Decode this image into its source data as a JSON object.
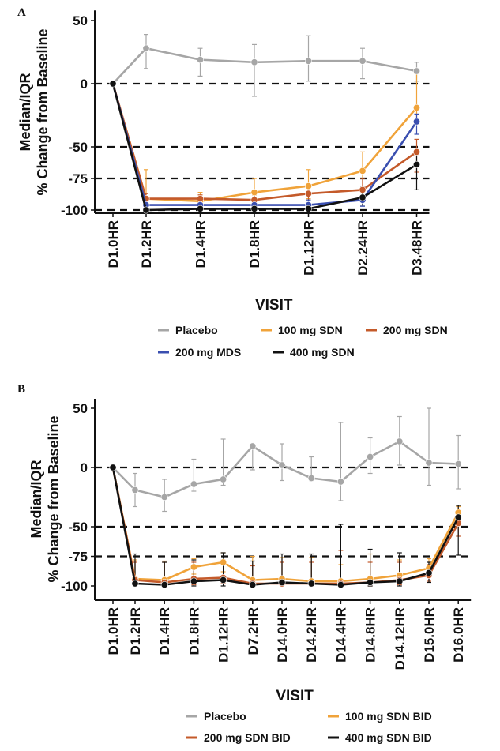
{
  "chart_data": [
    {
      "panel_label": "A",
      "type": "line",
      "ylabel_line1": "Median/IQR",
      "ylabel_line2": "% Change from Baseline",
      "xlabel": "VISIT",
      "ylim": [
        -105,
        58
      ],
      "y_ticks": [
        50,
        0,
        -50,
        -75,
        -100
      ],
      "ref_lines": [
        0,
        -50,
        -75,
        -100
      ],
      "categories": [
        "D1.0HR",
        "D1.2HR",
        "D1.4HR",
        "D1.8HR",
        "D1.12HR",
        "D2.24HR",
        "D3.48HR"
      ],
      "legend_position": "bottom",
      "series": [
        {
          "name": "Placebo",
          "color": "#a6a6a6",
          "values": [
            0,
            28,
            19,
            17,
            18,
            18,
            10
          ],
          "err_low": [
            0,
            12,
            6,
            -10,
            2,
            4,
            2
          ],
          "err_high": [
            0,
            39,
            28,
            31,
            38,
            28,
            17
          ]
        },
        {
          "name": "100 mg SDN",
          "color": "#f0a33a",
          "values": [
            0,
            -91,
            -93,
            -86,
            -81,
            -69,
            -19
          ],
          "err_low": [
            0,
            -99,
            -97,
            -93,
            -91,
            -89,
            -32
          ],
          "err_high": [
            0,
            -68,
            -86,
            -75,
            -68,
            -54,
            8
          ]
        },
        {
          "name": "200 mg SDN",
          "color": "#c45a2a",
          "values": [
            0,
            -91,
            -91,
            -92,
            -87,
            -84,
            -54
          ],
          "err_low": [
            0,
            -97,
            -96,
            -97,
            -95,
            -93,
            -70
          ],
          "err_high": [
            0,
            -87,
            -88,
            -88,
            -80,
            -75,
            -44
          ]
        },
        {
          "name": "200 mg MDS",
          "color": "#3a4fb0",
          "values": [
            0,
            -96,
            -96,
            -96,
            -96,
            -92,
            -30
          ],
          "err_low": [
            0,
            -99,
            -99,
            -99,
            -99,
            -97,
            -40
          ],
          "err_high": [
            0,
            -92,
            -92,
            -92,
            -92,
            -86,
            -24
          ]
        },
        {
          "name": "400 mg SDN",
          "color": "#111111",
          "values": [
            0,
            -100,
            -99,
            -99,
            -99,
            -90,
            -64
          ],
          "err_low": [
            0,
            -100,
            -100,
            -100,
            -100,
            -96,
            -84
          ],
          "err_high": [
            0,
            -98,
            -98,
            -98,
            -98,
            -82,
            -56
          ]
        }
      ]
    },
    {
      "panel_label": "B",
      "type": "line",
      "ylabel_line1": "Median/IQR",
      "ylabel_line2": "% Change from Baseline",
      "xlabel": "VISIT",
      "ylim": [
        -105,
        58
      ],
      "y_ticks": [
        50,
        0,
        -50,
        -75,
        -100
      ],
      "ref_lines": [
        0,
        -50,
        -75
      ],
      "categories": [
        "D1.0HR",
        "D1.2HR",
        "D1.4HR",
        "D1.8HR",
        "D1.12HR",
        "D7.2HR",
        "D14.0HR",
        "D14.2HR",
        "D14.4HR",
        "D14.8HR",
        "D14.12HR",
        "D15.0HR",
        "D16.0HR"
      ],
      "legend_position": "bottom",
      "series": [
        {
          "name": "Placebo",
          "color": "#a6a6a6",
          "values": [
            0,
            -19,
            -25,
            -14,
            -10,
            18,
            2,
            -9,
            -12,
            9,
            22,
            4,
            3
          ],
          "err_low": [
            0,
            -33,
            -37,
            -20,
            -15,
            -2,
            -11,
            -11,
            -28,
            -5,
            2,
            -15,
            -18
          ],
          "err_high": [
            0,
            -5,
            -10,
            7,
            24,
            18,
            20,
            9,
            38,
            25,
            43,
            50,
            27
          ]
        },
        {
          "name": "100 mg SDN BID",
          "color": "#f0a33a",
          "values": [
            0,
            -94,
            -95,
            -84,
            -80,
            -95,
            -94,
            -96,
            -96,
            -94,
            -91,
            -85,
            -38
          ],
          "err_low": [
            0,
            -99,
            -99,
            -90,
            -88,
            -99,
            -98,
            -99,
            -99,
            -98,
            -95,
            -90,
            -45
          ],
          "err_high": [
            0,
            -78,
            -79,
            -77,
            -72,
            -75,
            -76,
            -76,
            -82,
            -73,
            -78,
            -77,
            -33
          ]
        },
        {
          "name": "200 mg SDN BID",
          "color": "#c45a2a",
          "values": [
            0,
            -95,
            -97,
            -94,
            -93,
            -98,
            -98,
            -98,
            -98,
            -97,
            -95,
            -91,
            -47
          ],
          "err_low": [
            0,
            -99,
            -100,
            -99,
            -98,
            -100,
            -100,
            -100,
            -100,
            -100,
            -99,
            -96,
            -58
          ],
          "err_high": [
            0,
            -80,
            -80,
            -80,
            -78,
            -83,
            -80,
            -80,
            -70,
            -80,
            -80,
            -82,
            -38
          ]
        },
        {
          "name": "400 mg SDN BID",
          "color": "#111111",
          "values": [
            0,
            -98,
            -99,
            -96,
            -95,
            -99,
            -97,
            -98,
            -99,
            -97,
            -96,
            -89,
            -42
          ],
          "err_low": [
            0,
            -100,
            -100,
            -100,
            -100,
            -100,
            -100,
            -100,
            -100,
            -100,
            -100,
            -97,
            -74
          ],
          "err_high": [
            0,
            -73,
            -80,
            -78,
            -72,
            -79,
            -73,
            -73,
            -48,
            -69,
            -72,
            -80,
            -32
          ]
        }
      ]
    }
  ]
}
